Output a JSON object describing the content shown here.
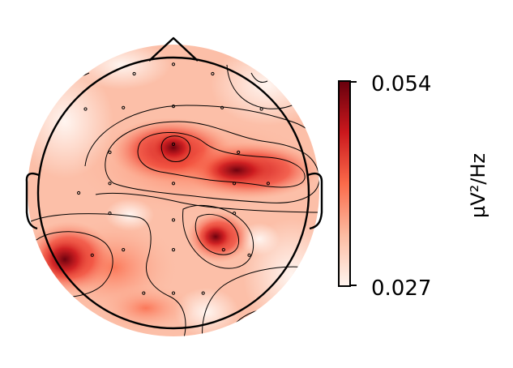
{
  "chart_data": {
    "type": "heatmap",
    "title": "",
    "colorbar": {
      "label": "µV²/Hz",
      "max_label": "0.054",
      "min_label": "0.027",
      "range": [
        0.027,
        0.054
      ],
      "colors": [
        "#fff5f0",
        "#fcbba1",
        "#fb6a4a",
        "#cb181d",
        "#67000d"
      ]
    },
    "sensors": [
      {
        "x": 0.0,
        "y": 0.95
      },
      {
        "x": -0.29,
        "y": 0.88
      },
      {
        "x": 0.29,
        "y": 0.88
      },
      {
        "x": -0.65,
        "y": 0.62
      },
      {
        "x": -0.37,
        "y": 0.63
      },
      {
        "x": 0.0,
        "y": 0.64
      },
      {
        "x": 0.36,
        "y": 0.63
      },
      {
        "x": 0.65,
        "y": 0.62
      },
      {
        "x": -0.47,
        "y": 0.3
      },
      {
        "x": 0.0,
        "y": 0.36
      },
      {
        "x": 0.48,
        "y": 0.3
      },
      {
        "x": -0.7,
        "y": 0.0
      },
      {
        "x": -0.47,
        "y": 0.07
      },
      {
        "x": 0.0,
        "y": 0.07
      },
      {
        "x": 0.45,
        "y": 0.07
      },
      {
        "x": 0.7,
        "y": 0.07
      },
      {
        "x": -0.47,
        "y": -0.15
      },
      {
        "x": 0.0,
        "y": -0.2
      },
      {
        "x": 0.45,
        "y": -0.15
      },
      {
        "x": -0.6,
        "y": -0.46
      },
      {
        "x": -0.37,
        "y": -0.42
      },
      {
        "x": 0.0,
        "y": -0.42
      },
      {
        "x": 0.37,
        "y": -0.42
      },
      {
        "x": 0.56,
        "y": -0.46
      },
      {
        "x": -0.22,
        "y": -0.74
      },
      {
        "x": 0.0,
        "y": -0.74
      },
      {
        "x": 0.22,
        "y": -0.74
      }
    ]
  }
}
